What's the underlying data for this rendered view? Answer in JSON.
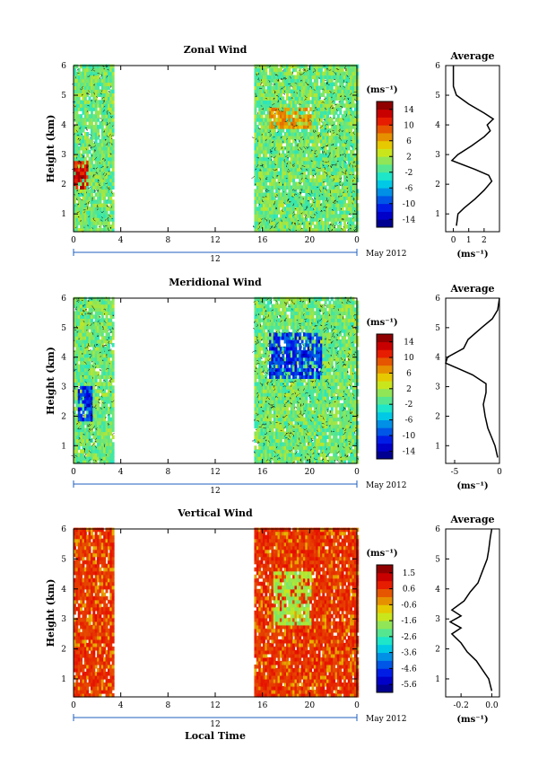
{
  "figure": {
    "date_label": "May 2012",
    "day_label": "12",
    "xlabel": "Local Time",
    "colorbar_unit": "(ms⁻¹)",
    "avg_unit": "(ms⁻¹)"
  },
  "chart_data": [
    {
      "type": "heatmap",
      "title": "Zonal Wind",
      "ylabel": "Height (km)",
      "xlim": [
        0,
        24
      ],
      "ylim": [
        0.4,
        6
      ],
      "x_ticks": [
        "0",
        "4",
        "8",
        "12",
        "16",
        "20",
        "0"
      ],
      "y_ticks": [
        "1",
        "2",
        "3",
        "4",
        "5",
        "6"
      ],
      "data_windows_local_time": [
        [
          0,
          3.3
        ],
        [
          15.3,
          24
        ]
      ],
      "colorbar": {
        "min": -15,
        "max": 15,
        "ticks": [
          "14",
          "10",
          "6",
          "2",
          "-2",
          "-6",
          "-10",
          "-14"
        ]
      },
      "features": [
        {
          "label": "strong westerly (positive)",
          "x": [
            0,
            1.2
          ],
          "y": [
            1.8,
            2.8
          ],
          "value": 14
        },
        {
          "label": "positive patches",
          "x": [
            16.5,
            20
          ],
          "y": [
            3.8,
            4.6
          ],
          "value": 8
        }
      ],
      "average_profile": {
        "title": "Average",
        "xlabel": "(ms⁻¹)",
        "x_ticks": [
          "0",
          "1",
          "2"
        ],
        "xlim": [
          -0.5,
          3
        ],
        "height_km": [
          0.6,
          1.0,
          1.2,
          1.5,
          1.8,
          2.1,
          2.3,
          2.5,
          2.8,
          3.0,
          3.3,
          3.6,
          3.8,
          4.0,
          4.2,
          4.4,
          4.7,
          5.0,
          5.3,
          5.6,
          6.0
        ],
        "value": [
          0.2,
          0.3,
          0.7,
          1.4,
          2.0,
          2.5,
          2.3,
          1.4,
          -0.1,
          0.3,
          1.2,
          2.0,
          2.4,
          2.2,
          2.6,
          2.0,
          1.0,
          0.2,
          0.0,
          0.0,
          0.0
        ]
      }
    },
    {
      "type": "heatmap",
      "title": "Meridional Wind",
      "ylabel": "Height (km)",
      "xlim": [
        0,
        24
      ],
      "ylim": [
        0.4,
        6
      ],
      "x_ticks": [
        "0",
        "4",
        "8",
        "12",
        "16",
        "20",
        "0"
      ],
      "y_ticks": [
        "1",
        "2",
        "3",
        "4",
        "5",
        "6"
      ],
      "data_windows_local_time": [
        [
          0,
          3.3
        ],
        [
          15.3,
          24
        ]
      ],
      "colorbar": {
        "min": -15,
        "max": 15,
        "ticks": [
          "14",
          "10",
          "6",
          "2",
          "-2",
          "-6",
          "-10",
          "-14"
        ]
      },
      "features": [
        {
          "label": "strong southward (negative)",
          "x": [
            0.3,
            1.5
          ],
          "y": [
            1.8,
            3.0
          ],
          "value": -12
        },
        {
          "label": "negative columns",
          "x": [
            16.5,
            21
          ],
          "y": [
            3.2,
            4.8
          ],
          "value": -12
        }
      ],
      "average_profile": {
        "title": "Average",
        "xlabel": "(ms⁻¹)",
        "x_ticks": [
          "-5",
          "0"
        ],
        "xlim": [
          -6,
          0
        ],
        "height_km": [
          0.6,
          1.0,
          1.3,
          1.6,
          2.0,
          2.4,
          2.8,
          3.1,
          3.4,
          3.8,
          4.0,
          4.3,
          4.6,
          5.0,
          5.3,
          5.6,
          6.0
        ],
        "value": [
          -0.2,
          -0.5,
          -0.9,
          -1.3,
          -1.6,
          -1.8,
          -1.5,
          -1.5,
          -3.0,
          -6.0,
          -5.8,
          -4.0,
          -3.5,
          -2.0,
          -0.8,
          -0.2,
          0.0
        ]
      }
    },
    {
      "type": "heatmap",
      "title": "Vertical Wind",
      "ylabel": "Height (km)",
      "xlabel": "Local Time",
      "xlim": [
        0,
        24
      ],
      "ylim": [
        0.4,
        6
      ],
      "x_ticks": [
        "0",
        "4",
        "8",
        "12",
        "16",
        "20",
        "0"
      ],
      "y_ticks": [
        "1",
        "2",
        "3",
        "4",
        "5",
        "6"
      ],
      "data_windows_local_time": [
        [
          0,
          3.3
        ],
        [
          15.3,
          24
        ]
      ],
      "colorbar": {
        "min": -6,
        "max": 2,
        "ticks": [
          "1.5",
          "0.6",
          "-0.6",
          "-1.6",
          "-2.6",
          "-3.6",
          "-4.6",
          "-5.6"
        ]
      },
      "features": [
        {
          "label": "weak downdraft",
          "x": [
            16.8,
            20
          ],
          "y": [
            2.8,
            4.6
          ],
          "value": -2
        }
      ],
      "average_profile": {
        "title": "Average",
        "xlabel": "(ms⁻¹)",
        "x_ticks": [
          "-0.2",
          "0.0"
        ],
        "xlim": [
          -0.3,
          0.05
        ],
        "height_km": [
          0.6,
          1.0,
          1.3,
          1.6,
          1.9,
          2.2,
          2.5,
          2.7,
          2.9,
          3.1,
          3.3,
          3.6,
          3.9,
          4.2,
          4.6,
          5.0,
          5.3,
          5.7,
          6.0
        ],
        "value": [
          0.0,
          -0.02,
          -0.06,
          -0.1,
          -0.16,
          -0.2,
          -0.26,
          -0.2,
          -0.27,
          -0.2,
          -0.26,
          -0.18,
          -0.14,
          -0.09,
          -0.06,
          -0.03,
          -0.02,
          -0.01,
          0.0
        ]
      }
    }
  ]
}
